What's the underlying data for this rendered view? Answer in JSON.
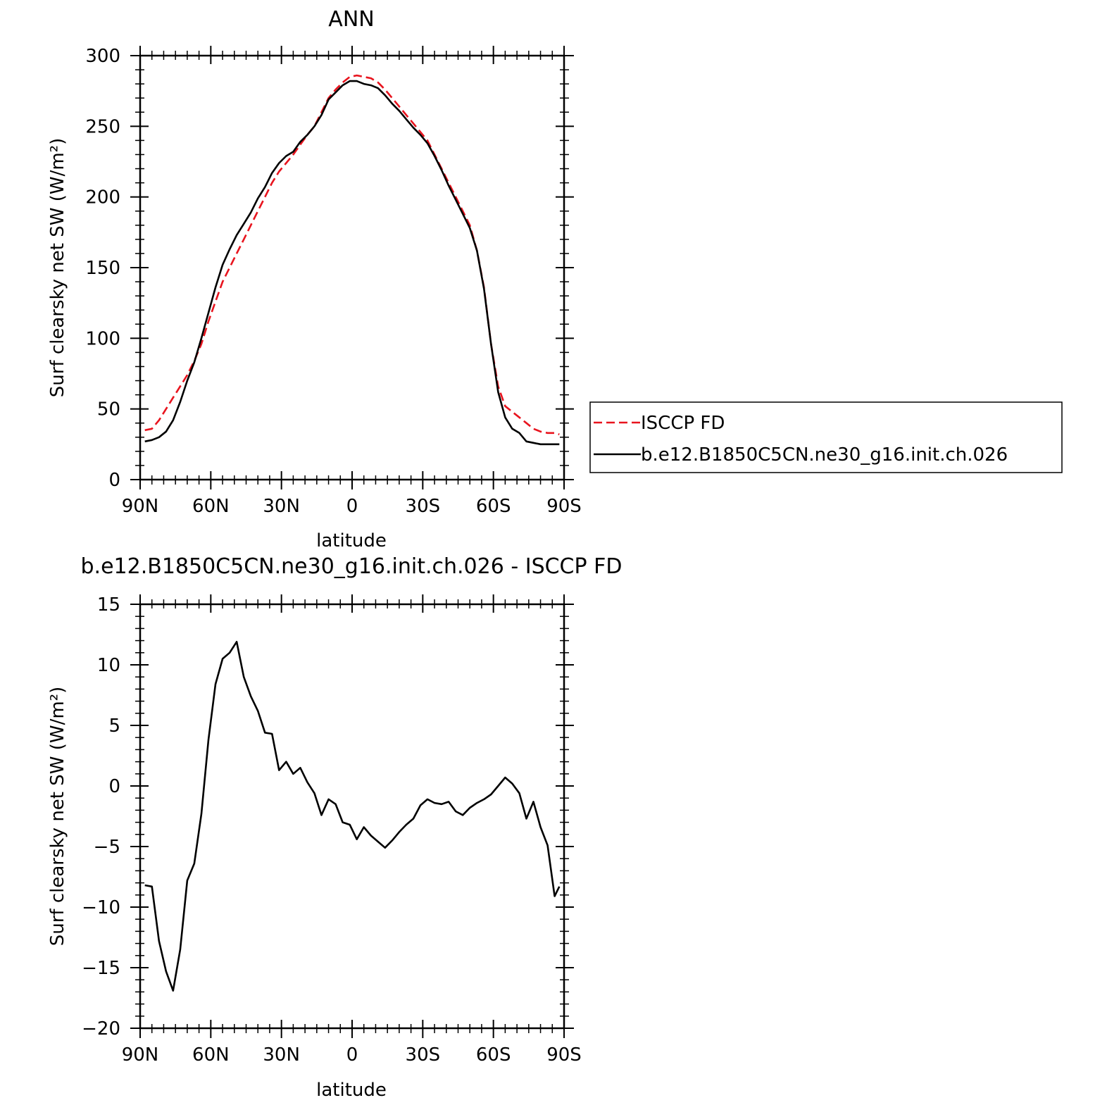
{
  "chart_data": [
    {
      "type": "line",
      "title": "ANN",
      "xlabel": "latitude",
      "ylabel": "Surf clearsky net SW (W/m²)",
      "xlim": [
        90,
        -90
      ],
      "ylim": [
        0,
        300
      ],
      "xticks": [
        {
          "value": 90,
          "label": "90N"
        },
        {
          "value": 60,
          "label": "60N"
        },
        {
          "value": 30,
          "label": "30N"
        },
        {
          "value": 0,
          "label": "0"
        },
        {
          "value": -30,
          "label": "30S"
        },
        {
          "value": -60,
          "label": "60S"
        },
        {
          "value": -90,
          "label": "90S"
        }
      ],
      "yticks": [
        {
          "value": 0,
          "label": "0"
        },
        {
          "value": 50,
          "label": "50"
        },
        {
          "value": 100,
          "label": "100"
        },
        {
          "value": 150,
          "label": "150"
        },
        {
          "value": 200,
          "label": "200"
        },
        {
          "value": 250,
          "label": "250"
        },
        {
          "value": 300,
          "label": "300"
        }
      ],
      "grid": false,
      "legend_position": "right",
      "x": [
        88,
        85,
        82,
        79,
        76,
        73,
        70,
        67,
        64,
        61,
        58,
        55,
        52,
        49,
        46,
        43,
        40,
        37,
        34,
        31,
        28,
        25,
        22,
        19,
        16,
        13,
        10,
        7,
        4,
        1,
        -2,
        -5,
        -8,
        -11,
        -14,
        -17,
        -20,
        -23,
        -26,
        -29,
        -32,
        -35,
        -38,
        -41,
        -44,
        -47,
        -50,
        -53,
        -56,
        -59,
        -62,
        -65,
        -68,
        -71,
        -74,
        -77,
        -80,
        -83,
        -86,
        -88
      ],
      "series": [
        {
          "name": "ISCCP FD",
          "color": "#e8141e",
          "style": "dashed",
          "values": [
            35,
            36,
            42,
            50,
            58,
            66,
            74,
            84,
            96,
            112,
            126,
            140,
            150,
            160,
            170,
            180,
            190,
            200,
            210,
            218,
            224,
            230,
            237,
            244,
            250,
            260,
            270,
            276,
            281,
            285,
            286,
            285,
            284,
            281,
            276,
            270,
            264,
            258,
            252,
            246,
            240,
            230,
            220,
            210,
            200,
            190,
            180,
            162,
            136,
            96,
            66,
            52,
            48,
            44,
            40,
            36,
            34,
            33,
            33,
            32
          ]
        },
        {
          "name": "b.e12.B1850C5CN.ne30_g16.init.ch.026",
          "color": "#000000",
          "style": "solid",
          "values": [
            27,
            28,
            30,
            34,
            42,
            55,
            70,
            83,
            100,
            118,
            136,
            152,
            163,
            173,
            181,
            189,
            199,
            207,
            217,
            224,
            229,
            232,
            239,
            244,
            250,
            258,
            269,
            274,
            279,
            282,
            282,
            280,
            279,
            277,
            272,
            266,
            261,
            255,
            249,
            244,
            238,
            229,
            219,
            208,
            198,
            188,
            178,
            162,
            135,
            96,
            62,
            44,
            36,
            33,
            27,
            26,
            25,
            25,
            25,
            25
          ]
        }
      ]
    },
    {
      "type": "line",
      "title": "b.e12.B1850C5CN.ne30_g16.init.ch.026 - ISCCP FD",
      "xlabel": "latitude",
      "ylabel": "Surf clearsky net SW (W/m²)",
      "xlim": [
        90,
        -90
      ],
      "ylim": [
        -20,
        15
      ],
      "xticks": [
        {
          "value": 90,
          "label": "90N"
        },
        {
          "value": 60,
          "label": "60N"
        },
        {
          "value": 30,
          "label": "30N"
        },
        {
          "value": 0,
          "label": "0"
        },
        {
          "value": -30,
          "label": "30S"
        },
        {
          "value": -60,
          "label": "60S"
        },
        {
          "value": -90,
          "label": "90S"
        }
      ],
      "yticks": [
        {
          "value": -20,
          "label": "−20"
        },
        {
          "value": -15,
          "label": "−15"
        },
        {
          "value": -10,
          "label": "−10"
        },
        {
          "value": -5,
          "label": "−5"
        },
        {
          "value": 0,
          "label": "0"
        },
        {
          "value": 5,
          "label": "5"
        },
        {
          "value": 10,
          "label": "10"
        },
        {
          "value": 15,
          "label": "15"
        }
      ],
      "grid": false,
      "x": [
        88,
        85,
        82,
        79,
        76,
        73,
        70,
        67,
        64,
        61,
        58,
        55,
        52,
        49,
        46,
        43,
        40,
        37,
        34,
        31,
        28,
        25,
        22,
        19,
        16,
        13,
        10,
        7,
        4,
        1,
        -2,
        -5,
        -8,
        -11,
        -14,
        -17,
        -20,
        -23,
        -26,
        -29,
        -32,
        -35,
        -38,
        -41,
        -44,
        -47,
        -50,
        -53,
        -56,
        -59,
        -62,
        -65,
        -68,
        -71,
        -74,
        -77,
        -80,
        -83,
        -86,
        -88
      ],
      "series": [
        {
          "name": "",
          "color": "#000000",
          "style": "solid",
          "values": [
            -8.2,
            -8.3,
            -12.8,
            -15.3,
            -16.9,
            -13.5,
            -7.8,
            -6.4,
            -2.3,
            3.8,
            8.4,
            10.5,
            11.0,
            11.9,
            9.0,
            7.4,
            6.2,
            4.4,
            4.3,
            1.3,
            2.0,
            1.0,
            1.5,
            0.3,
            -0.6,
            -2.4,
            -1.1,
            -1.5,
            -3.0,
            -3.2,
            -4.4,
            -3.4,
            -4.1,
            -4.6,
            -5.1,
            -4.5,
            -3.8,
            -3.2,
            -2.7,
            -1.6,
            -1.1,
            -1.4,
            -1.5,
            -1.3,
            -2.1,
            -2.4,
            -1.8,
            -1.4,
            -1.1,
            -0.7,
            0.0,
            0.7,
            0.2,
            -0.6,
            -2.7,
            -1.3,
            -3.4,
            -4.9,
            -9.1,
            -8.3
          ]
        }
      ]
    }
  ]
}
